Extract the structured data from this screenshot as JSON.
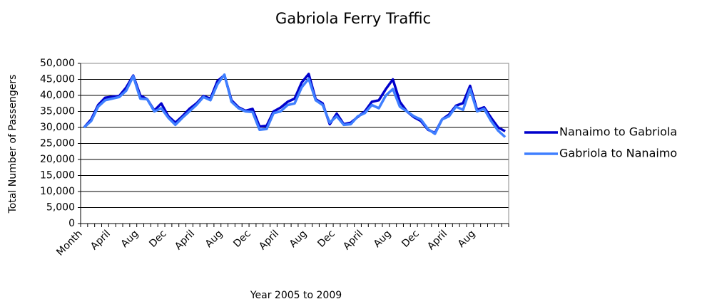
{
  "chart_data": {
    "type": "line",
    "title": "Gabriola Ferry Traffic",
    "x_label": "Year 2005 to 2009",
    "y_label": "Total Number of Passengers",
    "categories": [
      "Month",
      null,
      null,
      null,
      "April",
      null,
      null,
      null,
      "Aug",
      null,
      null,
      null,
      "Dec",
      null,
      null,
      null,
      "April",
      null,
      null,
      null,
      "Aug",
      null,
      null,
      null,
      "Dec",
      null,
      null,
      null,
      "April",
      null,
      null,
      null,
      "Aug",
      null,
      null,
      null,
      "Dec",
      null,
      null,
      null,
      "April",
      null,
      null,
      null,
      "Aug",
      null,
      null,
      null,
      "Dec",
      null,
      null,
      null,
      "April",
      null,
      null,
      null,
      "Aug",
      null,
      null,
      null,
      null
    ],
    "series": [
      {
        "name": "Nanaimo to Gabriola",
        "color": "#0000cc",
        "values": [
          30000,
          32500,
          37000,
          39300,
          39600,
          39800,
          42500,
          46200,
          40000,
          38800,
          35300,
          37500,
          33500,
          31500,
          33500,
          35800,
          37500,
          39800,
          39000,
          44500,
          46300,
          38500,
          36300,
          35200,
          35800,
          30300,
          30500,
          35000,
          36200,
          38000,
          39000,
          44000,
          46700,
          38800,
          37500,
          31000,
          34300,
          31000,
          31500,
          33300,
          35000,
          38000,
          38500,
          42000,
          45000,
          38000,
          35000,
          33200,
          32000,
          29300,
          28300,
          32500,
          34000,
          36800,
          37600,
          43000,
          35500,
          36300,
          33000,
          30000,
          28800
        ]
      },
      {
        "name": "Gabriola to Nanaimo",
        "color": "#3f7fff",
        "values": [
          30000,
          32000,
          36500,
          38500,
          39000,
          39500,
          41500,
          46000,
          39000,
          38800,
          35000,
          36000,
          33000,
          30800,
          33000,
          35000,
          37000,
          39500,
          38500,
          43500,
          46500,
          38000,
          36000,
          35000,
          34800,
          29300,
          29500,
          34500,
          35000,
          37000,
          37500,
          42500,
          45200,
          38500,
          37000,
          31500,
          33500,
          30800,
          31000,
          33500,
          34500,
          37000,
          36000,
          40000,
          42000,
          36500,
          35000,
          33500,
          32500,
          29500,
          28000,
          32500,
          33500,
          36500,
          35500,
          42000,
          35000,
          35800,
          32000,
          29000,
          27000
        ]
      }
    ],
    "ylim": [
      0,
      50000
    ],
    "yticks": [
      0,
      {
        "value": 5000,
        "label": "5,000"
      },
      {
        "value": 10000,
        "label": "10,000"
      },
      {
        "value": 15000,
        "label": "15,000"
      },
      {
        "value": 20000,
        "label": "20,000"
      },
      {
        "value": 25000,
        "label": "25,000"
      },
      {
        "value": 30000,
        "label": "30,000"
      },
      {
        "value": 35000,
        "label": "35,000"
      },
      {
        "value": 40000,
        "label": "40,000"
      },
      {
        "value": 45000,
        "label": "45,000"
      },
      {
        "value": 50000,
        "label": "50,000"
      }
    ],
    "grid": true,
    "legend": "right"
  }
}
